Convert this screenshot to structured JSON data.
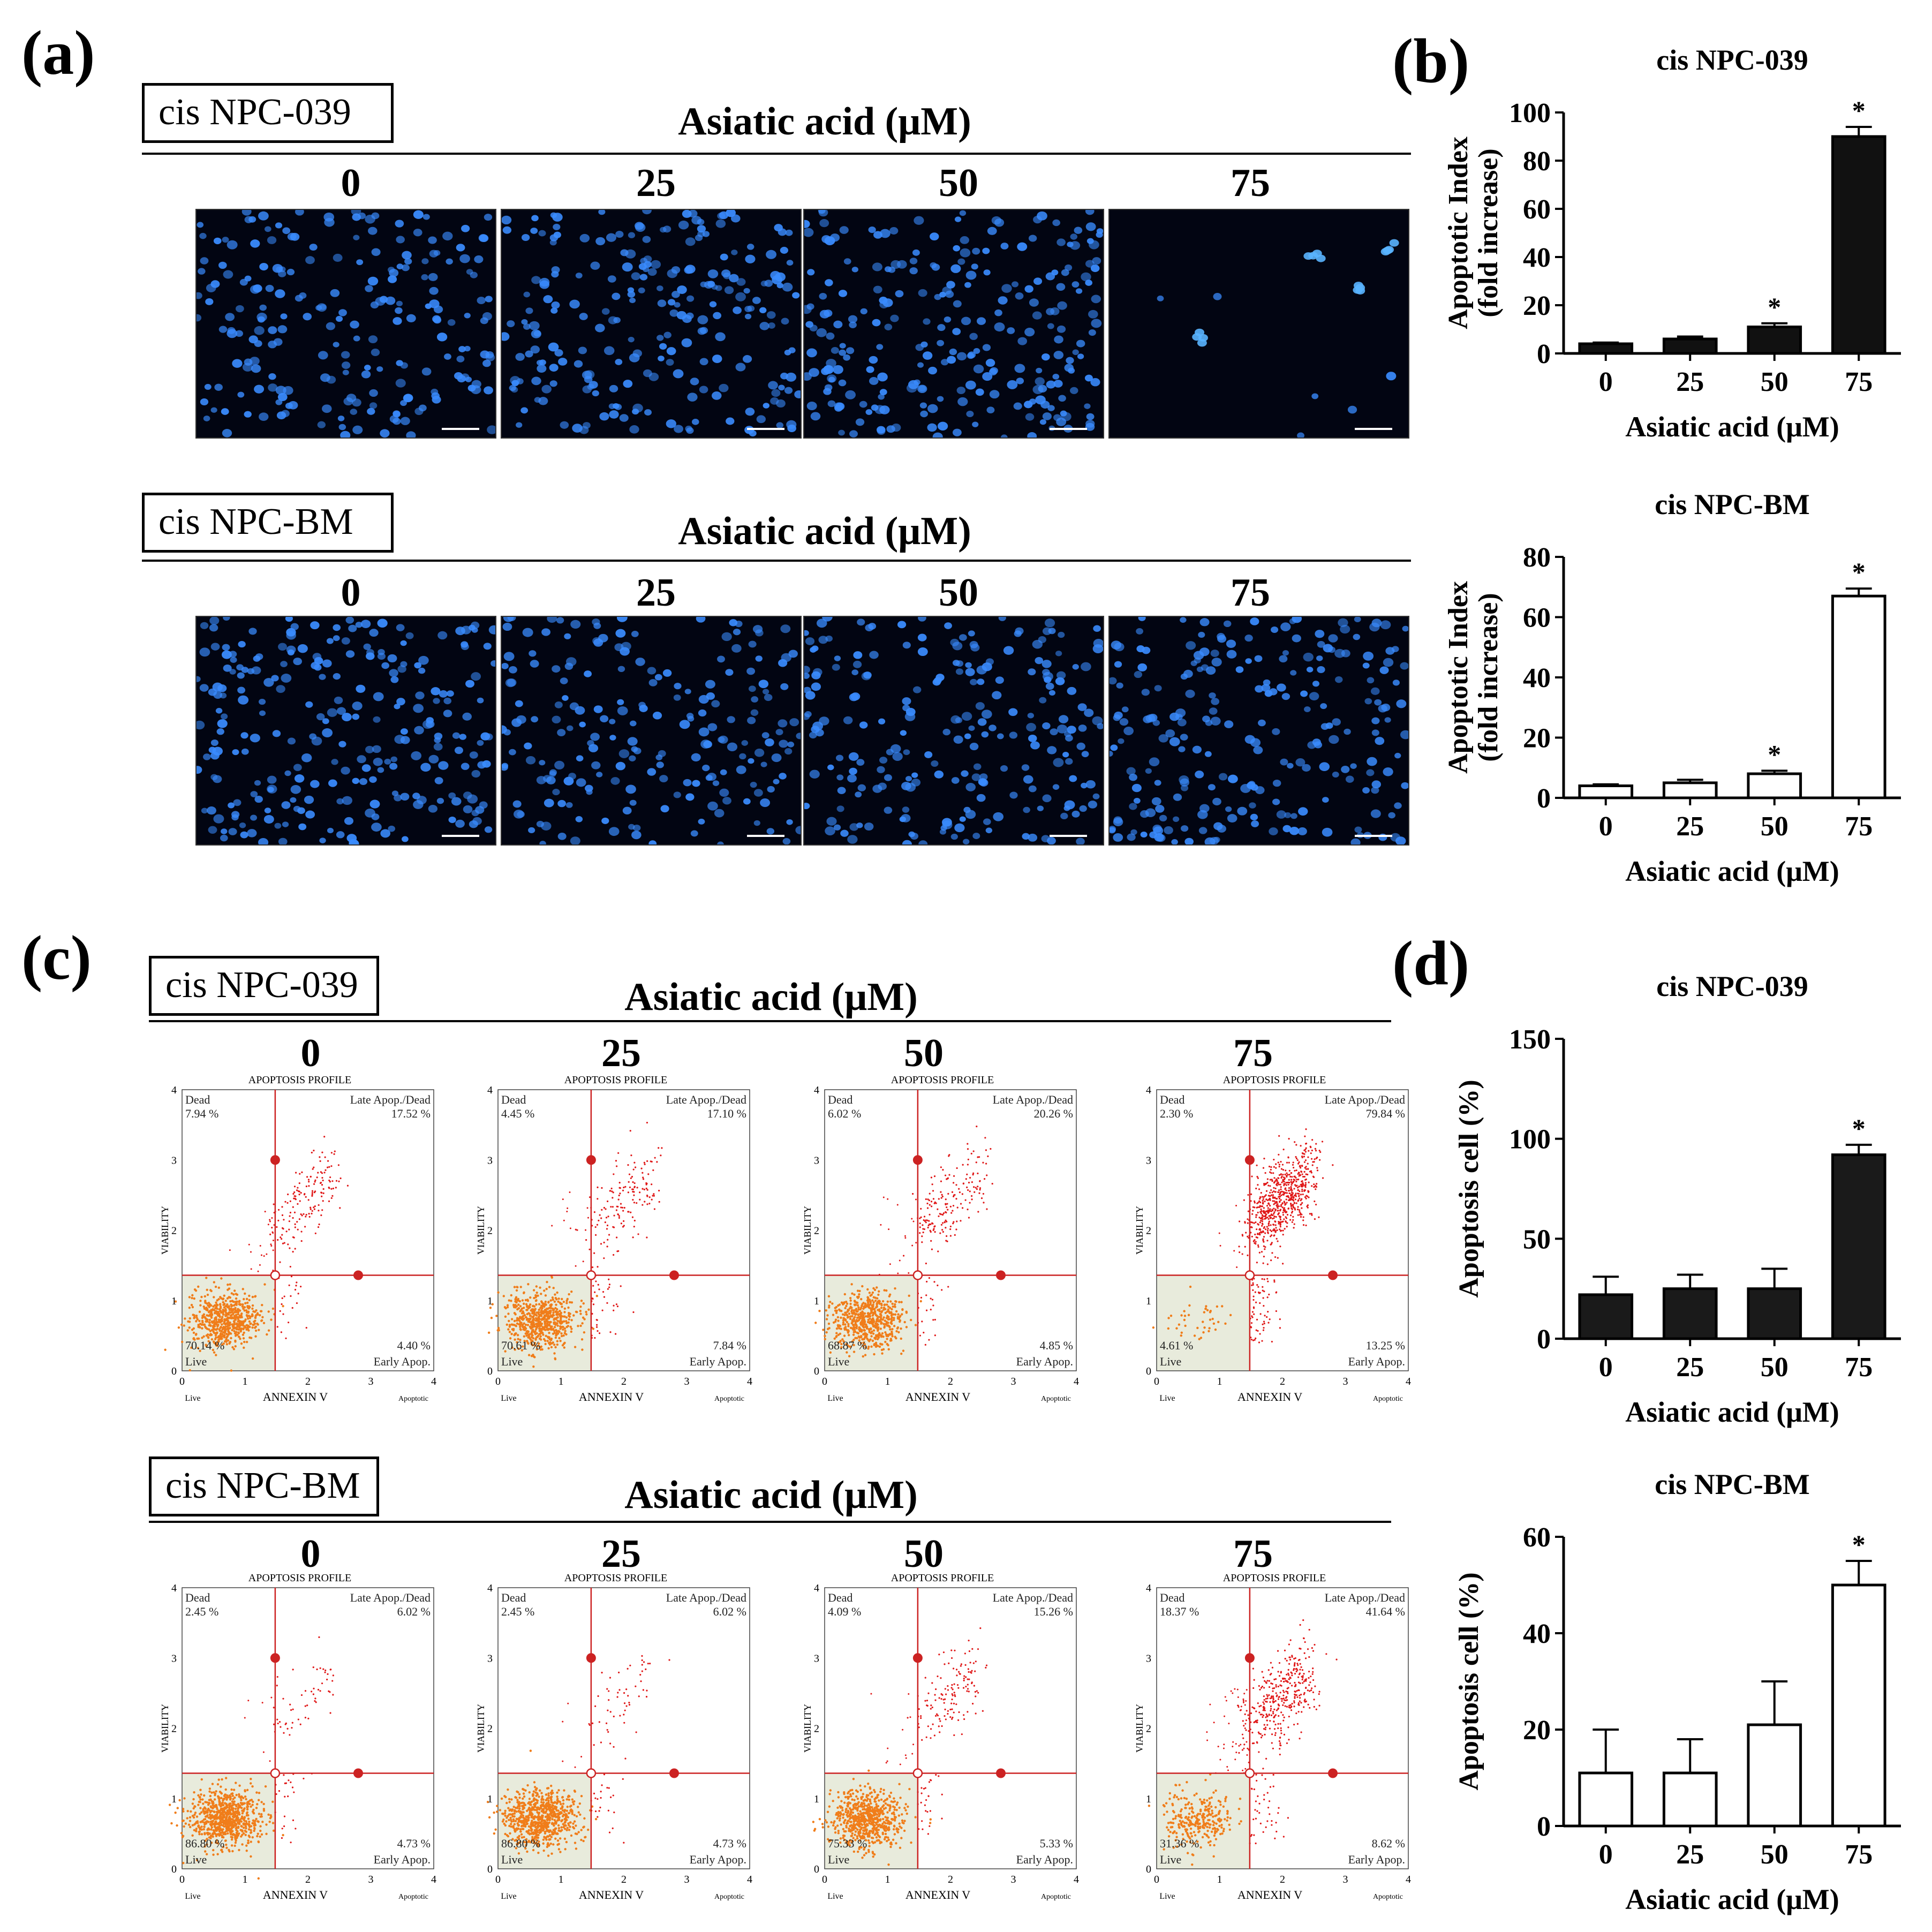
{
  "figure": {
    "panel_labels": {
      "a": "(a)",
      "b": "(b)",
      "c": "(c)",
      "d": "(d)"
    },
    "treatment_axis_title": "Asiatic acid (μM)",
    "concentrations": [
      "0",
      "25",
      "50",
      "75"
    ]
  },
  "panel_a": {
    "rows": [
      {
        "cell_line": "cis NPC-039",
        "title": "Asiatic acid (μM)",
        "density": [
          220,
          240,
          260,
          6
        ]
      },
      {
        "cell_line": "cis NPC-BM",
        "title": "Asiatic acid (μM)",
        "density": [
          260,
          210,
          230,
          240
        ]
      }
    ],
    "stain_color": "#3a8cff"
  },
  "panel_c": {
    "plot_title": "APOPTOSIS PROFILE",
    "y_axis_label": "VIABILITY",
    "x_axis_label": "ANNEXIN V",
    "x_axis_left": "Live",
    "x_axis_right": "Apoptotic",
    "quadrant_names": {
      "dead": "Dead",
      "late": "Late Apop./Dead",
      "live": "Live",
      "early": "Early Apop."
    },
    "rows": [
      {
        "cell_line": "cis NPC-039",
        "title": "Asiatic acid (μM)",
        "plots": [
          {
            "dead": "7.94 %",
            "late": "17.52 %",
            "live": "70.14 %",
            "early": "4.40 %"
          },
          {
            "dead": "4.45 %",
            "late": "17.10 %",
            "live": "70.61 %",
            "early": "7.84 %"
          },
          {
            "dead": "6.02 %",
            "late": "20.26 %",
            "live": "68.87 %",
            "early": "4.85 %"
          },
          {
            "dead": "2.30 %",
            "late": "79.84 %",
            "live": "4.61 %",
            "early": "13.25 %"
          }
        ]
      },
      {
        "cell_line": "cis NPC-BM",
        "title": "Asiatic acid (μM)",
        "plots": [
          {
            "dead": "2.45 %",
            "late": "6.02 %",
            "live": "86.80 %",
            "early": "4.73 %"
          },
          {
            "dead": "2.45 %",
            "late": "6.02 %",
            "live": "86.80 %",
            "early": "4.73 %"
          },
          {
            "dead": "4.09 %",
            "late": "15.26 %",
            "live": "75.33 %",
            "early": "5.33 %"
          },
          {
            "dead": "18.37 %",
            "late": "41.64 %",
            "live": "31.36 %",
            "early": "8.62 %"
          }
        ]
      }
    ],
    "colors": {
      "live_cells": "#f07d1a",
      "apoptotic_cells": "#e01818",
      "gate": "#cc2222",
      "gate_fill": "#e8ebdc"
    }
  },
  "chart_data": [
    {
      "id": "b1",
      "type": "bar",
      "title": "cis NPC-039",
      "categories": [
        "0",
        "25",
        "50",
        "75"
      ],
      "values": [
        4,
        6,
        11,
        90
      ],
      "errors": [
        0.5,
        1,
        1.5,
        4
      ],
      "significant": [
        false,
        false,
        true,
        true
      ],
      "sig_symbol": "*",
      "xlabel": "Asiatic acid (μM)",
      "ylabel": [
        "Apoptotic Index",
        "(fold increase)"
      ],
      "ylim": [
        0,
        100
      ],
      "yticks": [
        "0",
        "20",
        "40",
        "60",
        "80",
        "100"
      ],
      "fill": "#111111"
    },
    {
      "id": "b2",
      "type": "bar",
      "title": "cis NPC-BM",
      "categories": [
        "0",
        "25",
        "50",
        "75"
      ],
      "values": [
        4,
        5,
        8,
        67
      ],
      "errors": [
        0.5,
        1,
        1,
        2.5
      ],
      "significant": [
        false,
        false,
        true,
        true
      ],
      "sig_symbol": "*",
      "xlabel": "Asiatic acid (μM)",
      "ylabel": [
        "Apoptotic Index",
        "(fold increase)"
      ],
      "ylim": [
        0,
        80
      ],
      "yticks": [
        "0",
        "20",
        "40",
        "60",
        "80"
      ],
      "fill": "#ffffff"
    },
    {
      "id": "d1",
      "type": "bar",
      "title": "cis NPC-039",
      "categories": [
        "0",
        "25",
        "50",
        "75"
      ],
      "values": [
        22,
        25,
        25,
        92
      ],
      "errors": [
        9,
        7,
        10,
        5
      ],
      "significant": [
        false,
        false,
        false,
        true
      ],
      "sig_symbol": "*",
      "xlabel": "Asiatic acid (μM)",
      "ylabel": [
        "Apoptosis cell (%)"
      ],
      "ylim": [
        0,
        150
      ],
      "yticks": [
        "0",
        "50",
        "100",
        "150"
      ],
      "fill": "#1a1a1a"
    },
    {
      "id": "d2",
      "type": "bar",
      "title": "cis NPC-BM",
      "categories": [
        "0",
        "25",
        "50",
        "75"
      ],
      "values": [
        11,
        11,
        21,
        50
      ],
      "errors": [
        9,
        7,
        9,
        5
      ],
      "significant": [
        false,
        false,
        false,
        true
      ],
      "sig_symbol": "*",
      "xlabel": "Asiatic acid (μM)",
      "ylabel": [
        "Apoptosis cell (%)"
      ],
      "ylim": [
        0,
        60
      ],
      "yticks": [
        "0",
        "20",
        "40",
        "60"
      ],
      "fill": "#ffffff"
    }
  ]
}
